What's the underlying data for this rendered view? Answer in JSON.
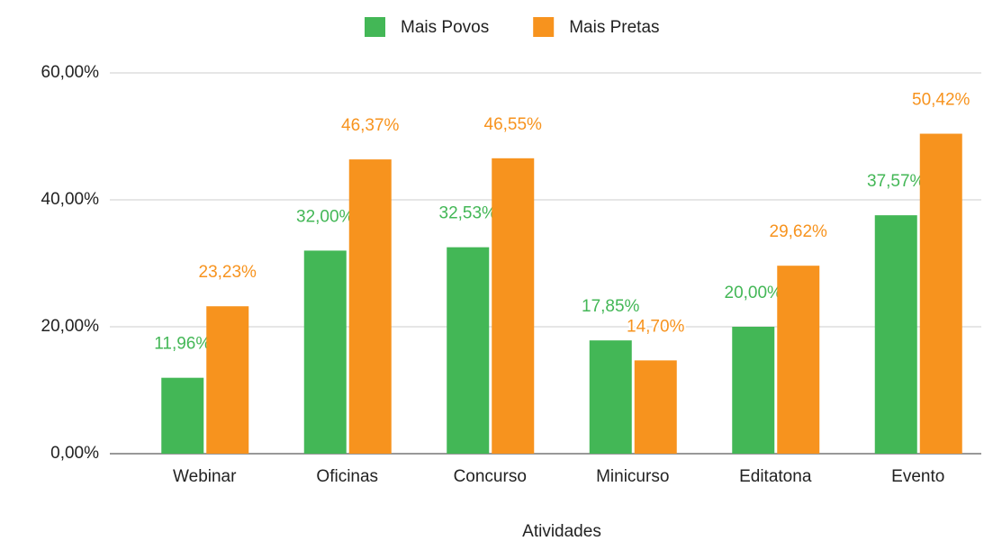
{
  "chart_data": {
    "type": "bar",
    "categories": [
      "Webinar",
      "Oficinas",
      "Concurso",
      "Minicurso",
      "Editatona",
      "Evento"
    ],
    "series": [
      {
        "name": "Mais Povos",
        "color": "#43b756",
        "values": [
          11.96,
          32.0,
          32.53,
          17.85,
          20.0,
          37.57
        ],
        "value_labels": [
          "11,96%",
          "32,00%",
          "32,53%",
          "17,85%",
          "20,00%",
          "37,57%"
        ]
      },
      {
        "name": "Mais Pretas",
        "color": "#f7931e",
        "values": [
          23.23,
          46.37,
          46.55,
          14.7,
          29.62,
          50.42
        ],
        "value_labels": [
          "23,23%",
          "46,37%",
          "46,55%",
          "14,70%",
          "29,62%",
          "50,42%"
        ]
      }
    ],
    "x_label": "Atividades",
    "ylim": [
      0,
      60
    ],
    "yticks": [
      {
        "value": 0,
        "label": "0,00%"
      },
      {
        "value": 20,
        "label": "20,00%"
      },
      {
        "value": 40,
        "label": "40,00%"
      },
      {
        "value": 60,
        "label": "60,00%"
      }
    ],
    "grid": true,
    "legend": "top"
  }
}
